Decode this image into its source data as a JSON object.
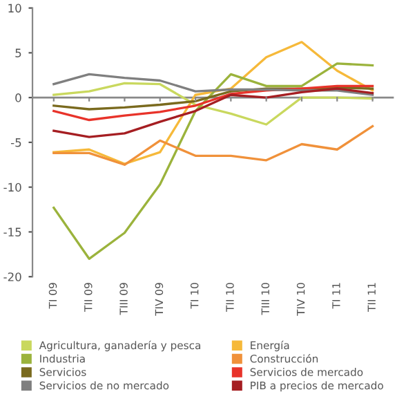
{
  "chart_data": {
    "type": "line",
    "categories": [
      "TI 09",
      "TII 09",
      "TIII 09",
      "TIV 09",
      "TI 10",
      "TII 10",
      "TIII 10",
      "TIV 10",
      "TI 11",
      "TII 11"
    ],
    "series": [
      {
        "name": "Agricultura, ganadería y pesca",
        "color": "#c9d85e",
        "values": [
          0.3,
          0.7,
          1.6,
          1.5,
          -0.8,
          -1.8,
          -3.0,
          0.0,
          0.0,
          -0.1
        ]
      },
      {
        "name": "Energía",
        "color": "#f6b93a",
        "values": [
          -6.1,
          -5.8,
          -7.4,
          -6.1,
          0.3,
          1.0,
          4.5,
          6.2,
          3.0,
          0.8
        ]
      },
      {
        "name": "Industria",
        "color": "#9bb33c",
        "values": [
          -12.3,
          -18.0,
          -15.1,
          -9.7,
          -1.5,
          2.6,
          1.3,
          1.3,
          3.8,
          3.6
        ]
      },
      {
        "name": "Construcción",
        "color": "#f0913a",
        "values": [
          -6.2,
          -6.2,
          -7.5,
          -4.8,
          -6.5,
          -6.5,
          -7.0,
          -5.2,
          -5.8,
          -3.2
        ]
      },
      {
        "name": "Servicios",
        "color": "#7a6a1e",
        "values": [
          -0.9,
          -1.3,
          -1.1,
          -0.8,
          -0.4,
          0.7,
          1.0,
          1.0,
          1.1,
          1.0
        ]
      },
      {
        "name": "Servicios de mercado",
        "color": "#e8332a",
        "values": [
          -1.5,
          -2.5,
          -2.0,
          -1.6,
          -0.9,
          0.4,
          0.8,
          1.0,
          1.3,
          1.3
        ]
      },
      {
        "name": "Servicios de no mercado",
        "color": "#7f7f7f",
        "values": [
          1.5,
          2.6,
          2.2,
          1.9,
          0.7,
          0.9,
          0.9,
          0.8,
          0.8,
          0.3
        ]
      },
      {
        "name": "PIB a precios de mercado",
        "color": "#a51e22",
        "values": [
          -3.7,
          -4.4,
          -4.0,
          -2.7,
          -1.5,
          0.3,
          0.0,
          0.6,
          1.0,
          0.5
        ]
      }
    ],
    "ref_lines": [
      {
        "axis": "y",
        "value": 0,
        "color": "#888888"
      }
    ],
    "ylim": [
      -20,
      10
    ],
    "yticks": [
      -20,
      -15,
      -10,
      -5,
      0,
      5,
      10
    ],
    "grid": false,
    "legend": "bottom",
    "marker": "none",
    "line_style": "solid"
  }
}
